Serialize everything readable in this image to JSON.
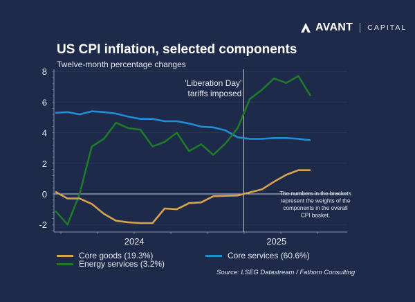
{
  "brand": {
    "name": "AVANT",
    "suffix": "CAPITAL"
  },
  "chart_data": {
    "type": "line",
    "title": "US CPI inflation, selected components",
    "subtitle": "Twelve-month percentage changes",
    "xlabel": "",
    "ylabel": "",
    "ylim": [
      -2.4,
      8
    ],
    "yticks": [
      -2,
      0,
      2,
      4,
      6,
      8
    ],
    "ytick_labels": [
      "-2",
      "0",
      "2",
      "4",
      "6",
      "8"
    ],
    "x": [
      "Jan 2024",
      "Feb 2024",
      "Mar 2024",
      "Apr 2024",
      "May 2024",
      "Jun 2024",
      "Jul 2024",
      "Aug 2024",
      "Sep 2024",
      "Oct 2024",
      "Nov 2024",
      "Dec 2024",
      "Jan 2025",
      "Feb 2025",
      "Mar 2025",
      "Apr 2025",
      "May 2025",
      "Jun 2025",
      "Jul 2025",
      "Aug 2025",
      "Sep 2025",
      "Oct 2025"
    ],
    "x_group_labels": [
      {
        "label": "2024",
        "center_index": 6.5
      },
      {
        "label": "2025",
        "center_index": 18.2
      }
    ],
    "grid": true,
    "series": [
      {
        "name": "Core goods (19.3%)",
        "color": "#d9a24e",
        "values": [
          0.15,
          -0.3,
          -0.3,
          -0.65,
          -1.3,
          -1.75,
          -1.85,
          -1.9,
          -1.9,
          -0.95,
          -1.0,
          -0.6,
          -0.55,
          -0.15,
          -0.12,
          -0.1,
          0.1,
          0.3,
          0.8,
          1.25,
          1.55,
          1.55
        ]
      },
      {
        "name": "Core services (60.6%)",
        "color": "#1f8ed6",
        "values": [
          5.3,
          5.35,
          5.2,
          5.4,
          5.35,
          5.25,
          5.05,
          4.9,
          4.9,
          4.75,
          4.75,
          4.6,
          4.4,
          4.35,
          4.15,
          3.7,
          3.6,
          3.6,
          3.65,
          3.65,
          3.6,
          3.5
        ]
      },
      {
        "name": "Energy services (3.2%)",
        "color": "#1f7a2a",
        "values": [
          -1.1,
          -2.0,
          0.0,
          3.1,
          3.6,
          4.65,
          4.3,
          4.2,
          3.1,
          3.4,
          4.0,
          2.8,
          3.25,
          2.55,
          3.3,
          4.3,
          6.2,
          6.8,
          7.55,
          7.25,
          7.7,
          6.4
        ]
      }
    ],
    "annotations": [
      {
        "text_lines": [
          "'Liberation Day'",
          "tariffs imposed"
        ],
        "x_index": 15.5
      },
      {
        "text_lines": [
          "The numbers in the brackets",
          "represent the weights of the",
          "components in the overall",
          "CPI basket."
        ]
      }
    ],
    "legend_position": "bottom",
    "source": "Source: LSEG Datastream / Fathom Consulting"
  }
}
